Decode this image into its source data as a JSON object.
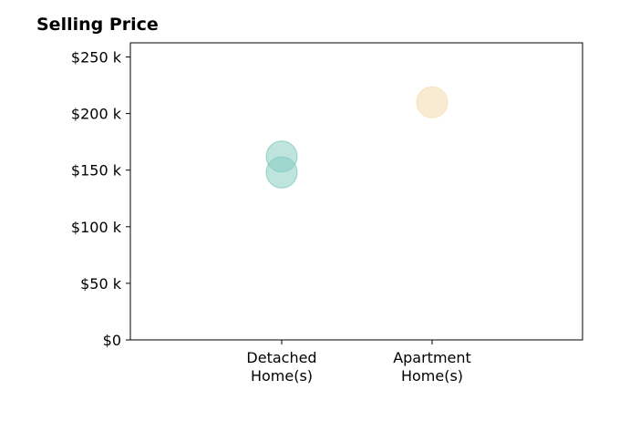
{
  "chart_data": {
    "type": "scatter",
    "title": "Selling Price",
    "categories": [
      "Detached\nHome(s)",
      "Apartment\nHome(s)"
    ],
    "ylim": [
      0,
      262.5
    ],
    "yticks": [
      0,
      50,
      100,
      150,
      200,
      250
    ],
    "ytick_labels": [
      "$0",
      "$50 k",
      "$100 k",
      "$150 k",
      "$200 k",
      "$250 k"
    ],
    "grid": false,
    "points": [
      {
        "category": "Detached\nHome(s)",
        "value": 162,
        "color": "#7fc9bd",
        "opacity": 0.5
      },
      {
        "category": "Detached\nHome(s)",
        "value": 148,
        "color": "#7fc9bd",
        "opacity": 0.5
      },
      {
        "category": "Apartment\nHome(s)",
        "value": 210,
        "color": "#f6e3bf",
        "opacity": 0.7
      }
    ]
  }
}
